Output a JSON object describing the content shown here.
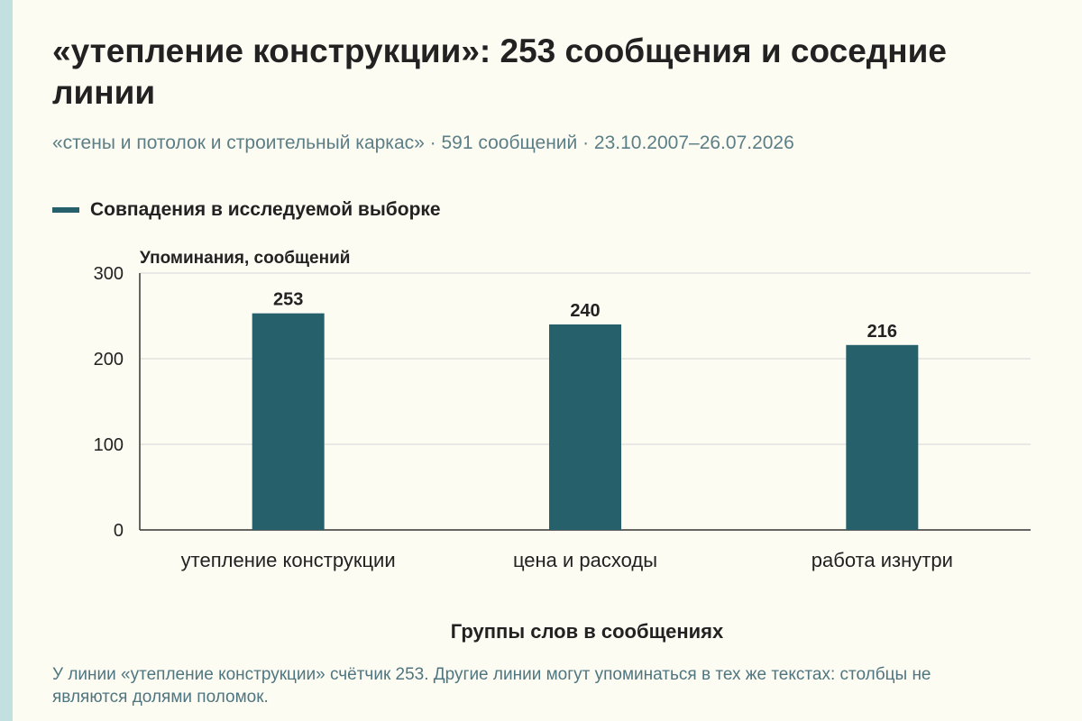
{
  "header": {
    "title": "«утепление конструкции»: 253 сообщения и соседние линии",
    "subtitle": "«стены и потолок и строительный каркас» · 591 сообщений · 23.10.2007–26.07.2026"
  },
  "legend": {
    "label": "Совпадения в исследуемой выборке"
  },
  "colors": {
    "bar": "#26606b",
    "accent_stripe": "#c3e0e0",
    "text": "#222222",
    "muted_text": "#5c7e86",
    "grid": "#d5d5d5",
    "background": "#fdfcf3"
  },
  "chart_data": {
    "type": "bar",
    "categories": [
      "утепление конструкции",
      "цена и расходы",
      "работа изнутри"
    ],
    "series": [
      {
        "name": "Совпадения в исследуемой выборке",
        "values": [
          253,
          240,
          216
        ]
      }
    ],
    "ylabel": "Упоминания, сообщений",
    "xlabel": "Группы слов в сообщениях",
    "ylim": [
      0,
      300
    ],
    "yticks": [
      0,
      100,
      200,
      300
    ],
    "data_labels": [
      "253",
      "240",
      "216"
    ],
    "grid": true,
    "legend_position": "top-left"
  },
  "footer": {
    "note": "У линии «утепление конструкции» счётчик 253. Другие линии могут упоминаться в тех же текстах: столбцы не являются долями поломок."
  }
}
